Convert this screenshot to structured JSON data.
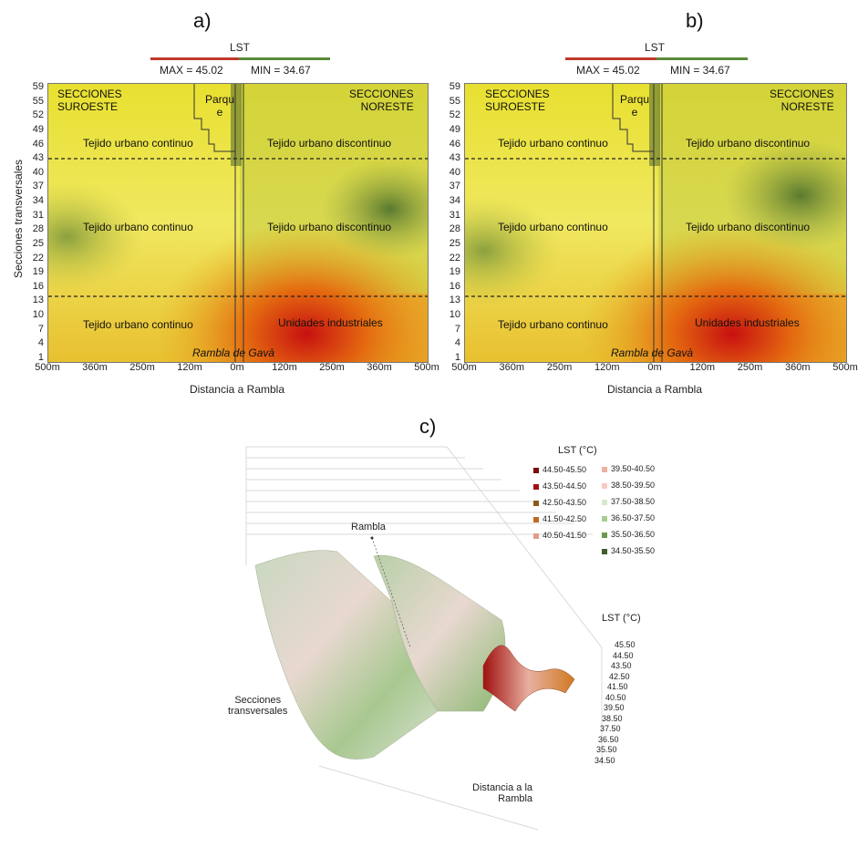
{
  "panels": {
    "a": {
      "label": "a)"
    },
    "b": {
      "label": "b)"
    },
    "c": {
      "label": "c)"
    }
  },
  "lst_bar": {
    "title": "LST",
    "max": "MAX = 45.02",
    "min": "MIN = 34.67",
    "max_color": "#c0392b",
    "min_color": "#5a8a3a"
  },
  "heatmap_labels": {
    "sw": "SECCIONES\nSUROESTE",
    "ne": "SECCIONES\nNORESTE",
    "parque": "Parqu\ne",
    "t1": "Tejido urbano continuo",
    "t2": "Tejido urbano discontinuo",
    "t3": "Tejido urbano continuo",
    "t4": "Tejido urbano discontinuo",
    "t5": "Tejido urbano continuo",
    "t6": "Unidades industriales",
    "rambla": "Rambla de Gavà"
  },
  "chart_data": [
    {
      "type": "heatmap",
      "panel": "a",
      "xlabel": "Distancia a Rambla",
      "ylabel": "Secciones transversales",
      "x_ticks": [
        "500m",
        "360m",
        "250m",
        "120m",
        "0m",
        "120m",
        "250m",
        "360m",
        "500m"
      ],
      "y_ticks": [
        "59",
        "55",
        "52",
        "49",
        "46",
        "43",
        "40",
        "37",
        "34",
        "31",
        "28",
        "25",
        "22",
        "19",
        "16",
        "13",
        "10",
        "7",
        "4",
        "1"
      ],
      "zones_dividers_y": [
        44.5,
        14.5
      ]
    },
    {
      "type": "heatmap",
      "panel": "b",
      "xlabel": "Distancia a Rambla",
      "ylabel": "",
      "x_ticks": [
        "500m",
        "360m",
        "250m",
        "120m",
        "0m",
        "120m",
        "250m",
        "360m",
        "500m"
      ],
      "y_ticks": [
        "59",
        "55",
        "52",
        "49",
        "46",
        "43",
        "40",
        "37",
        "34",
        "31",
        "28",
        "25",
        "22",
        "19",
        "16",
        "13",
        "10",
        "7",
        "4",
        "1"
      ],
      "zones_dividers_y": [
        44.5,
        14.5
      ]
    },
    {
      "type": "area",
      "panel": "c",
      "title": "LST (°C)",
      "z_axis_title": "LST (°C)",
      "z_ticks": [
        "45.50",
        "44.50",
        "43.50",
        "42.50",
        "41.50",
        "40.50",
        "39.50",
        "38.50",
        "37.50",
        "36.50",
        "35.50",
        "34.50"
      ],
      "rambla_label": "Rambla",
      "secciones_label": "Secciones\ntransversales",
      "distancia_label": "Distancia a la\nRambla",
      "legend": [
        {
          "range": "44.50-45.50",
          "color": "#7a0d0d"
        },
        {
          "range": "43.50-44.50",
          "color": "#a01010"
        },
        {
          "range": "42.50-43.50",
          "color": "#8a5a1a"
        },
        {
          "range": "41.50-42.50",
          "color": "#c06a20"
        },
        {
          "range": "40.50-41.50",
          "color": "#e49a8a"
        },
        {
          "range": "39.50-40.50",
          "color": "#f0b0a0"
        },
        {
          "range": "38.50-39.50",
          "color": "#f5ccc0"
        },
        {
          "range": "37.50-38.50",
          "color": "#d8e8cc"
        },
        {
          "range": "36.50-37.50",
          "color": "#a8cc90"
        },
        {
          "range": "35.50-36.50",
          "color": "#6a9a50"
        },
        {
          "range": "34.50-35.50",
          "color": "#3e5e30"
        }
      ]
    }
  ]
}
